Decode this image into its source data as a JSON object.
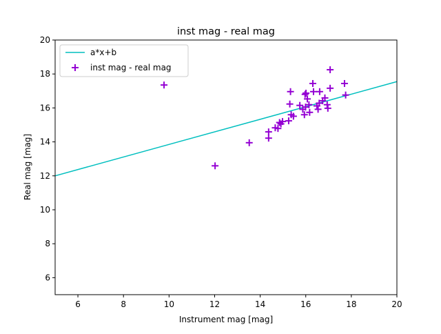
{
  "chart_data": {
    "type": "scatter",
    "title": "inst mag - real mag",
    "xlabel": "Instrument mag [mag]",
    "ylabel": "Real mag [mag]",
    "xlim": [
      5,
      20
    ],
    "ylim": [
      5,
      20
    ],
    "xticks": [
      6,
      8,
      10,
      12,
      14,
      16,
      18,
      20
    ],
    "yticks": [
      6,
      8,
      10,
      12,
      14,
      16,
      18,
      20
    ],
    "grid": false,
    "legend_position": "top-left",
    "colors": {
      "line": "#00bfbf",
      "points": "#9400d3"
    },
    "fit_line": {
      "name": "a*x+b",
      "a": 0.37,
      "b": 10.15
    },
    "series": [
      {
        "name": "inst mag - real mag",
        "marker": "+",
        "x": [
          9.78,
          12.02,
          13.52,
          14.37,
          14.37,
          14.66,
          14.78,
          14.85,
          14.91,
          14.98,
          15.25,
          15.33,
          15.3,
          15.36,
          15.46,
          15.74,
          15.87,
          15.94,
          15.97,
          16.01,
          16.07,
          15.99,
          16.14,
          16.17,
          16.31,
          16.34,
          16.49,
          16.54,
          16.59,
          16.61,
          16.74,
          16.84,
          16.94,
          16.97,
          17.07,
          17.07,
          17.7,
          17.75
        ],
        "y": [
          17.35,
          12.59,
          13.95,
          14.59,
          14.22,
          14.83,
          14.79,
          15.14,
          15.06,
          15.2,
          15.24,
          16.96,
          16.23,
          15.6,
          15.51,
          16.15,
          15.92,
          15.6,
          16.8,
          16.87,
          16.53,
          16.05,
          16.19,
          15.74,
          17.44,
          16.96,
          16.12,
          15.92,
          16.28,
          16.96,
          16.42,
          16.59,
          16.19,
          15.98,
          18.25,
          17.16,
          17.44,
          16.76
        ]
      }
    ]
  }
}
